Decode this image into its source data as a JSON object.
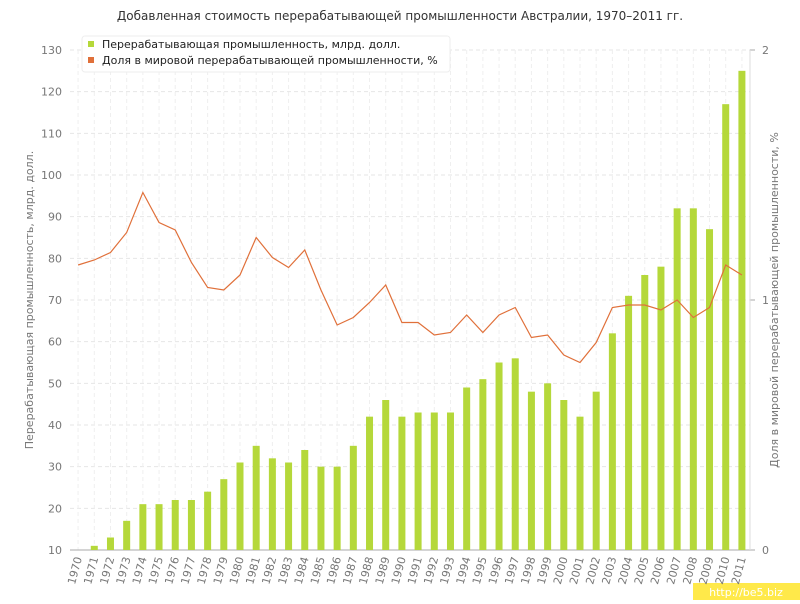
{
  "chart_data": {
    "type": "bar-line",
    "title": "Добавленная стоимость перерабатывающей промышленности Австралии, 1970–2011 гг.",
    "y_label": "Перерабатывающая промышленность, млрд. долл.",
    "y2_label": "Доля в мировой перерабатывающей промышленности, %",
    "categories": [
      "1970",
      "1971",
      "1972",
      "1973",
      "1974",
      "1975",
      "1976",
      "1977",
      "1978",
      "1979",
      "1980",
      "1981",
      "1982",
      "1983",
      "1984",
      "1985",
      "1986",
      "1987",
      "1988",
      "1989",
      "1990",
      "1991",
      "1992",
      "1993",
      "1994",
      "1995",
      "1996",
      "1997",
      "1998",
      "1999",
      "2000",
      "2001",
      "2002",
      "2003",
      "2004",
      "2005",
      "2006",
      "2007",
      "2008",
      "2009",
      "2010",
      "2011"
    ],
    "series": [
      {
        "name": "Перерабатывающая промышленность, млрд. долл.",
        "color": "#b5d83a",
        "type": "bar",
        "values": [
          10,
          11,
          13,
          17,
          21,
          21,
          22,
          22,
          24,
          27,
          31,
          35,
          32,
          31,
          34,
          30,
          30,
          35,
          42,
          46,
          42,
          43,
          43,
          43,
          49,
          51,
          55,
          56,
          48,
          50,
          46,
          42,
          48,
          62,
          71,
          76,
          78,
          92,
          92,
          87,
          117,
          125
        ]
      },
      {
        "name": "Доля в мировой перерабатывающей промышленности, %",
        "color": "#e0703a",
        "type": "line",
        "axis": "y2",
        "values": [
          1.14,
          1.16,
          1.19,
          1.27,
          1.43,
          1.31,
          1.28,
          1.15,
          1.05,
          1.04,
          1.1,
          1.25,
          1.17,
          1.13,
          1.2,
          1.04,
          0.9,
          0.93,
          0.99,
          1.06,
          0.91,
          0.91,
          0.86,
          0.87,
          0.94,
          0.87,
          0.94,
          0.97,
          0.85,
          0.86,
          0.78,
          0.75,
          0.83,
          0.97,
          0.98,
          0.98,
          0.96,
          1.0,
          0.93,
          0.97,
          1.14,
          1.1
        ]
      }
    ],
    "ylim": [
      10,
      130
    ],
    "yticks": [
      10,
      20,
      30,
      40,
      50,
      60,
      70,
      80,
      90,
      100,
      110,
      120,
      130
    ],
    "y2lim": [
      0,
      2
    ],
    "y2ticks": [
      0,
      1,
      2
    ],
    "grid": true,
    "legend": "top-left",
    "watermark": "http://be5.biz"
  }
}
